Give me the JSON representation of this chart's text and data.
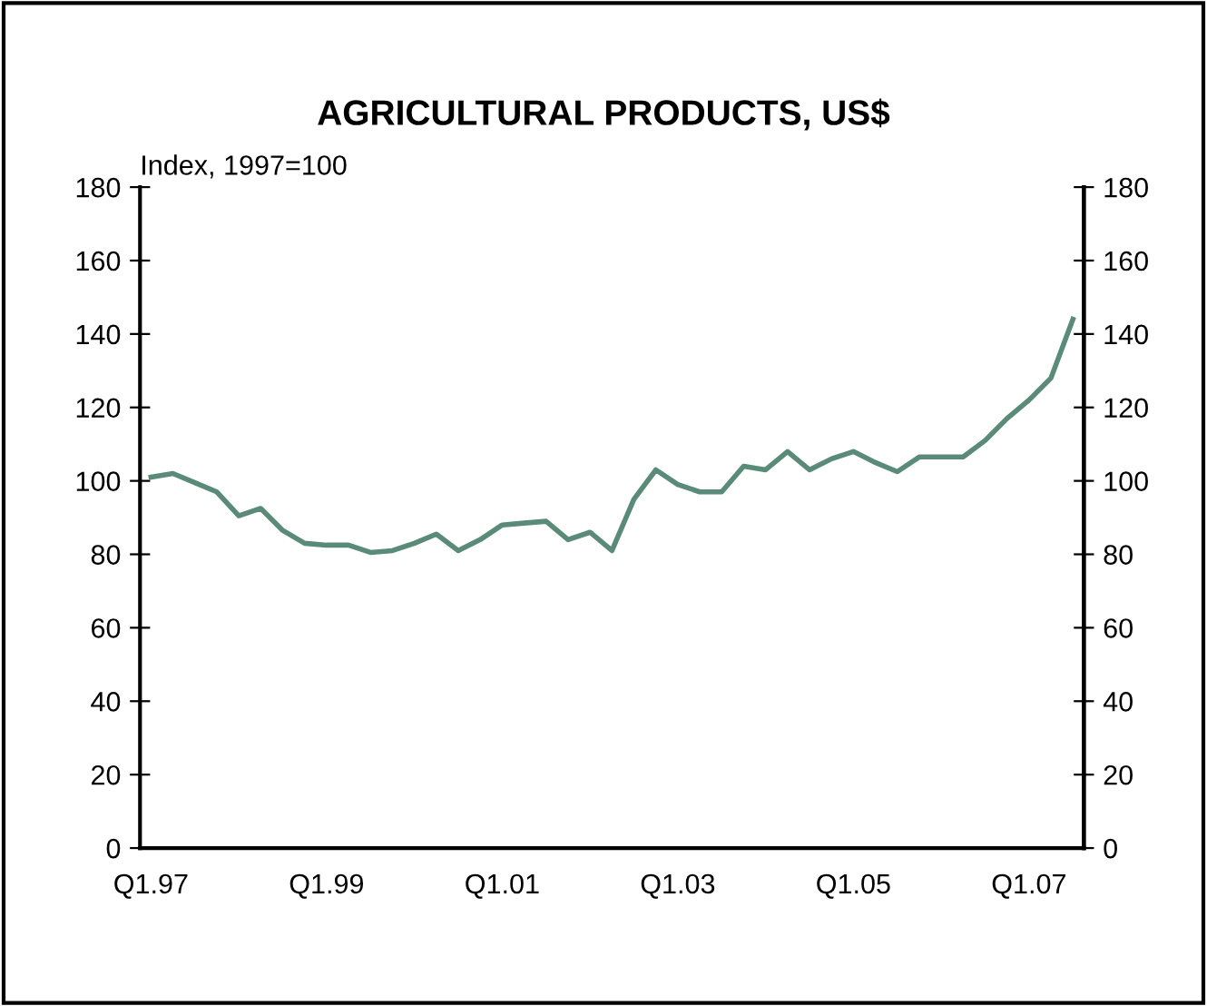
{
  "chart_data": {
    "type": "line",
    "title": "AGRICULTURAL PRODUCTS, US$",
    "ylabel": "Index, 1997=100",
    "categories": [
      "Q1.97",
      null,
      null,
      null,
      null,
      null,
      null,
      null,
      "Q1.99",
      null,
      null,
      null,
      null,
      null,
      null,
      null,
      "Q1.01",
      null,
      null,
      null,
      null,
      null,
      null,
      null,
      "Q1.03",
      null,
      null,
      null,
      null,
      null,
      null,
      null,
      "Q1.05",
      null,
      null,
      null,
      null,
      null,
      null,
      null,
      "Q1.07",
      null,
      null
    ],
    "series": [
      {
        "color": "#5a8a78",
        "values": [
          101,
          102,
          99.5,
          97,
          90.5,
          92.5,
          86.5,
          83,
          82.5,
          82.5,
          80.5,
          81,
          83,
          85.5,
          81,
          84,
          88,
          88.5,
          89,
          84,
          86,
          81,
          95,
          103,
          99,
          97,
          97,
          104,
          103,
          108,
          103,
          106,
          108,
          105,
          102.5,
          106.5,
          106.5,
          106.5,
          111,
          117,
          122,
          128,
          144
        ]
      }
    ],
    "ylim": [
      0,
      180
    ],
    "yticks": [
      0,
      20,
      40,
      60,
      80,
      100,
      120,
      140,
      160,
      180
    ],
    "y2lim": [
      0,
      180
    ],
    "y2ticks": [
      0,
      20,
      40,
      60,
      80,
      100,
      120,
      140,
      160,
      180
    ],
    "grid": false,
    "legend": false,
    "marker": "none",
    "line_style": "solid"
  }
}
